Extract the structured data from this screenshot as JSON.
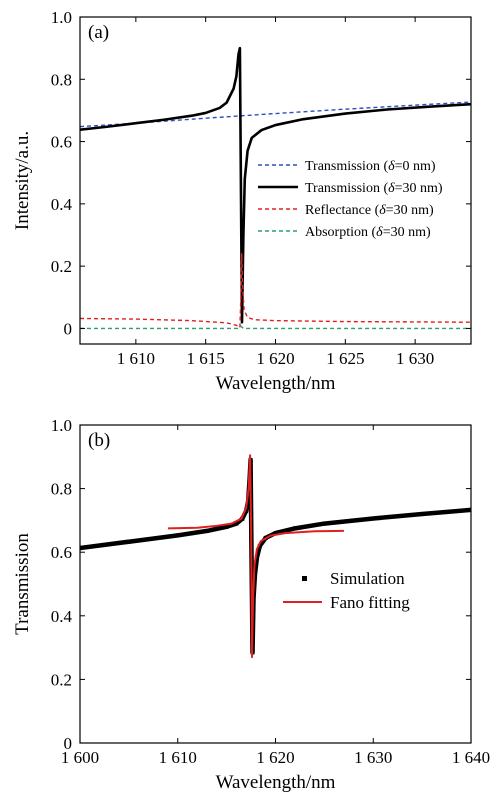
{
  "chart_data": [
    {
      "type": "line",
      "panel_label": "(a)",
      "xlabel": "Wavelength/nm",
      "ylabel": "Intensity/a.u.",
      "xlim": [
        1606,
        1634
      ],
      "ylim": [
        -0.05,
        1.0
      ],
      "xticks": [
        1610,
        1615,
        1620,
        1625,
        1630
      ],
      "xtick_labels": [
        "1 610",
        "1 615",
        "1 620",
        "1 625",
        "1 630"
      ],
      "yticks": [
        0,
        0.2,
        0.4,
        0.6,
        0.8,
        1.0
      ],
      "ytick_labels": [
        "0",
        "0.2",
        "0.4",
        "0.6",
        "0.8",
        "1.0"
      ],
      "grid": false,
      "legend_position": "center-right",
      "series": [
        {
          "name": "Transmission (δ=0 nm)",
          "name_parts": [
            "Transmission (",
            "δ",
            "=0 nm)"
          ],
          "style": "dashed",
          "color": "#2a4fbf",
          "x": [
            1606,
            1610,
            1615,
            1620,
            1625,
            1630,
            1634
          ],
          "y": [
            0.648,
            0.659,
            0.675,
            0.69,
            0.704,
            0.717,
            0.727
          ]
        },
        {
          "name": "Transmission (δ=30 nm)",
          "name_parts": [
            "Transmission (",
            "δ",
            "=30 nm)"
          ],
          "style": "solid-thick",
          "color": "#000000",
          "x": [
            1606,
            1608,
            1610,
            1612,
            1614,
            1615,
            1616,
            1616.5,
            1617,
            1617.2,
            1617.35,
            1617.45,
            1617.5,
            1617.55,
            1617.6,
            1617.7,
            1617.8,
            1618,
            1618.3,
            1619,
            1620,
            1622,
            1625,
            1628,
            1631,
            1634
          ],
          "y": [
            0.638,
            0.648,
            0.659,
            0.67,
            0.683,
            0.692,
            0.708,
            0.725,
            0.77,
            0.81,
            0.88,
            0.9,
            0.6,
            0.3,
            0.02,
            0.3,
            0.48,
            0.57,
            0.612,
            0.637,
            0.653,
            0.672,
            0.69,
            0.703,
            0.712,
            0.72
          ]
        },
        {
          "name": "Reflectance (δ=30 nm)",
          "name_parts": [
            "Reflectance (",
            "δ",
            "=30 nm)"
          ],
          "style": "dashed",
          "color": "#e02020",
          "x": [
            1606,
            1610,
            1614,
            1616.5,
            1617.2,
            1617.45,
            1617.52,
            1617.58,
            1617.65,
            1617.75,
            1618,
            1618.5,
            1620,
            1625,
            1634
          ],
          "y": [
            0.032,
            0.03,
            0.025,
            0.018,
            0.01,
            0.003,
            0.1,
            0.24,
            0.13,
            0.06,
            0.035,
            0.028,
            0.025,
            0.022,
            0.02
          ]
        },
        {
          "name": "Absorption (δ=30 nm)",
          "name_parts": [
            "Absorption (",
            "δ",
            "=30 nm)"
          ],
          "style": "dashed",
          "color": "#2e9e6e",
          "x": [
            1606,
            1617.3,
            1617.5,
            1617.7,
            1634
          ],
          "y": [
            0.0,
            0.0,
            0.008,
            0.0,
            0.0
          ]
        }
      ]
    },
    {
      "type": "line",
      "panel_label": "(b)",
      "xlabel": "Wavelength/nm",
      "ylabel": "Transmission",
      "xlim": [
        1600,
        1640
      ],
      "ylim": [
        0,
        1.0
      ],
      "xticks": [
        1600,
        1610,
        1620,
        1630,
        1640
      ],
      "xtick_labels": [
        "1 600",
        "1 610",
        "1 620",
        "1 630",
        "1 640"
      ],
      "yticks": [
        0,
        0.2,
        0.4,
        0.6,
        0.8,
        1.0
      ],
      "ytick_labels": [
        "0",
        "0.2",
        "0.4",
        "0.6",
        "0.8",
        "1.0"
      ],
      "grid": false,
      "legend_position": "center-right",
      "series": [
        {
          "name": "Simulation",
          "style": "square-markers",
          "color": "#000000",
          "x": [
            1600,
            1605,
            1610,
            1613,
            1615,
            1616,
            1616.6,
            1617,
            1617.2,
            1617.35,
            1617.45,
            1617.55,
            1617.65,
            1617.75,
            1617.9,
            1618.1,
            1618.4,
            1619,
            1620,
            1622,
            1625,
            1630,
            1635,
            1640
          ],
          "y": [
            0.613,
            0.633,
            0.653,
            0.667,
            0.68,
            0.69,
            0.705,
            0.73,
            0.76,
            0.83,
            0.89,
            0.58,
            0.285,
            0.455,
            0.53,
            0.583,
            0.62,
            0.645,
            0.66,
            0.675,
            0.69,
            0.706,
            0.72,
            0.733
          ]
        },
        {
          "name": "Fano fitting",
          "style": "solid",
          "color": "#e02020",
          "x": [
            1609,
            1612,
            1614,
            1615.5,
            1616.5,
            1617,
            1617.25,
            1617.4,
            1617.5,
            1617.6,
            1617.7,
            1617.85,
            1618.1,
            1618.5,
            1619.5,
            1621,
            1624,
            1627
          ],
          "y": [
            0.675,
            0.677,
            0.683,
            0.69,
            0.705,
            0.74,
            0.8,
            0.905,
            0.7,
            0.27,
            0.45,
            0.56,
            0.61,
            0.635,
            0.652,
            0.66,
            0.666,
            0.667
          ]
        }
      ]
    }
  ]
}
